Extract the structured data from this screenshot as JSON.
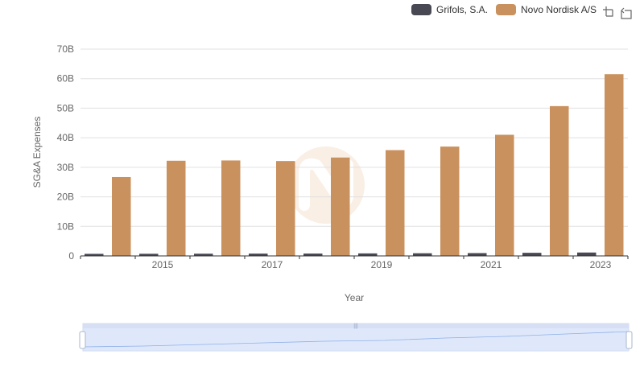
{
  "chart_data": {
    "type": "bar",
    "title": "",
    "xlabel": "Year",
    "ylabel": "SG&A Expenses",
    "x": [
      2014,
      2015,
      2016,
      2017,
      2018,
      2019,
      2020,
      2021,
      2022,
      2023
    ],
    "x_tick_labels": [
      "2015",
      "2017",
      "2019",
      "2021",
      "2023"
    ],
    "y_tick_labels": [
      "0",
      "10B",
      "20B",
      "30B",
      "40B",
      "50B",
      "60B",
      "70B"
    ],
    "ylim": [
      0,
      70000000000
    ],
    "grid": true,
    "legend_position": "top-right",
    "series": [
      {
        "name": "Grifols, S.A.",
        "color": "#484853",
        "values": [
          700000000,
          720000000,
          750000000,
          780000000,
          800000000,
          850000000,
          900000000,
          950000000,
          1050000000,
          1150000000
        ]
      },
      {
        "name": "Novo Nordisk A/S",
        "color": "#c9915d",
        "values": [
          26700000000,
          32200000000,
          32300000000,
          32100000000,
          33300000000,
          35800000000,
          37000000000,
          41000000000,
          50700000000,
          61500000000
        ]
      }
    ]
  },
  "toolbox": {
    "zoom_icon": "zoom-crosshair-icon",
    "reset_icon": "zoom-reset-icon"
  },
  "datazoom": {
    "range_start_percent": 0,
    "range_end_percent": 100
  }
}
